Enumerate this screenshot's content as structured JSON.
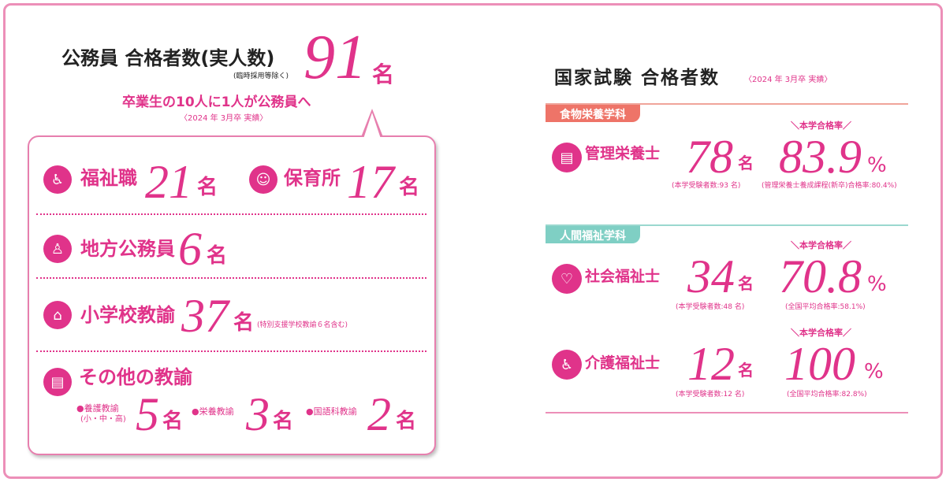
{
  "colors": {
    "accent": "#e0338a",
    "food_tag": "#ee7468",
    "welfare_tag": "#7fcfc4"
  },
  "left": {
    "title": "公務員 合格者数(実人数)",
    "note": "(臨時採用等除く)",
    "total": "91",
    "unit": "名",
    "subtitle": "卒業生の10人に1人が公務員へ",
    "period": "〈2024 年 3月卒 実績〉",
    "items": [
      {
        "icon": "caregiver-icon",
        "label": "福祉職",
        "value": "21",
        "unit": "名"
      },
      {
        "icon": "child-face-icon",
        "label": "保育所",
        "value": "17",
        "unit": "名"
      },
      {
        "icon": "civil-servant-icon",
        "label": "地方公務員",
        "value": "6",
        "unit": "名"
      },
      {
        "icon": "school-bag-icon",
        "label": "小学校教諭",
        "value": "37",
        "unit": "名",
        "note": "(特別支援学校教諭６名含む)"
      },
      {
        "icon": "clipboard-icon",
        "label": "その他の教諭"
      }
    ],
    "sub_items": [
      {
        "label": "●養護教諭",
        "label2": "(小・中・高)",
        "value": "5",
        "unit": "名"
      },
      {
        "label": "●栄養教諭",
        "value": "3",
        "unit": "名"
      },
      {
        "label": "●国語科教諭",
        "value": "2",
        "unit": "名"
      }
    ]
  },
  "right": {
    "title": "国家試験 合格者数",
    "period": "〈2024 年 3月卒 実績〉",
    "rate_label": "＼本学合格率／",
    "departments": [
      {
        "tag": "食物栄養学科",
        "rows": [
          {
            "icon": "clipboard-tomato-icon",
            "label": "管理栄養士",
            "value": "78",
            "unit": "名",
            "examinees": "(本学受験者数:93 名)",
            "rate": "83.9",
            "pct": "%",
            "compare": "(管理栄養士養成課程(新卒)合格率:80.4%)"
          }
        ]
      },
      {
        "tag": "人間福祉学科",
        "rows": [
          {
            "icon": "hands-heart-icon",
            "label": "社会福祉士",
            "value": "34",
            "unit": "名",
            "examinees": "(本学受験者数:48 名)",
            "rate": "70.8",
            "pct": "%",
            "compare": "(全国平均合格率:58.1%)"
          },
          {
            "icon": "wheelchair-icon",
            "label": "介護福祉士",
            "value": "12",
            "unit": "名",
            "examinees": "(本学受験者数:12 名)",
            "rate": "100",
            "pct": "%",
            "compare": "(全国平均合格率:82.8%)"
          }
        ]
      }
    ]
  }
}
